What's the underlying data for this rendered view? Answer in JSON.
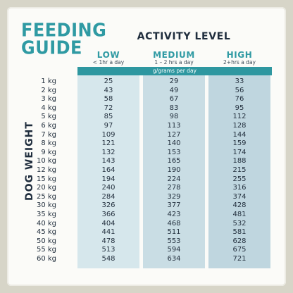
{
  "title_lines": [
    "FEEDING",
    "GUIDE"
  ],
  "activity_heading": "ACTIVITY LEVEL",
  "levels": [
    {
      "name": "LOW",
      "sub": "< 1hr a day"
    },
    {
      "name": "MEDIUM",
      "sub": "1 – 2 hrs a day"
    },
    {
      "name": "HIGH",
      "sub": "2+hrs a day"
    }
  ],
  "unit_label": "g/grams per day",
  "side_label": "DOG WEIGHT",
  "rows": [
    {
      "weight": "1 kg",
      "low": "25",
      "medium": "29",
      "high": "33"
    },
    {
      "weight": "2 kg",
      "low": "43",
      "medium": "49",
      "high": "56"
    },
    {
      "weight": "3 kg",
      "low": "58",
      "medium": "67",
      "high": "76"
    },
    {
      "weight": "4 kg",
      "low": "72",
      "medium": "83",
      "high": "95"
    },
    {
      "weight": "5 kg",
      "low": "85",
      "medium": "98",
      "high": "112"
    },
    {
      "weight": "6 kg",
      "low": "97",
      "medium": "113",
      "high": "128"
    },
    {
      "weight": "7 kg",
      "low": "109",
      "medium": "127",
      "high": "144"
    },
    {
      "weight": "8 kg",
      "low": "121",
      "medium": "140",
      "high": "159"
    },
    {
      "weight": "9 kg",
      "low": "132",
      "medium": "153",
      "high": "174"
    },
    {
      "weight": "10 kg",
      "low": "143",
      "medium": "165",
      "high": "188"
    },
    {
      "weight": "12 kg",
      "low": "164",
      "medium": "190",
      "high": "215"
    },
    {
      "weight": "15 kg",
      "low": "194",
      "medium": "224",
      "high": "255"
    },
    {
      "weight": "20 kg",
      "low": "240",
      "medium": "278",
      "high": "316"
    },
    {
      "weight": "25 kg",
      "low": "284",
      "medium": "329",
      "high": "374"
    },
    {
      "weight": "30 kg",
      "low": "326",
      "medium": "377",
      "high": "428"
    },
    {
      "weight": "35 kg",
      "low": "366",
      "medium": "423",
      "high": "481"
    },
    {
      "weight": "40 kg",
      "low": "404",
      "medium": "468",
      "high": "532"
    },
    {
      "weight": "45 kg",
      "low": "441",
      "medium": "511",
      "high": "581"
    },
    {
      "weight": "50 kg",
      "low": "478",
      "medium": "553",
      "high": "628"
    },
    {
      "weight": "55 kg",
      "low": "513",
      "medium": "594",
      "high": "675"
    },
    {
      "weight": "60 kg",
      "low": "548",
      "medium": "634",
      "high": "721"
    }
  ],
  "colors": {
    "accent": "#2f9aa3",
    "text_dark": "#1f2d3d",
    "column_fill_low": "#d6e7ec",
    "column_fill_medium": "#c9dde4",
    "column_fill_high": "#bfd6df",
    "background": "#d7d5c8",
    "card": "#fbfbf8"
  }
}
